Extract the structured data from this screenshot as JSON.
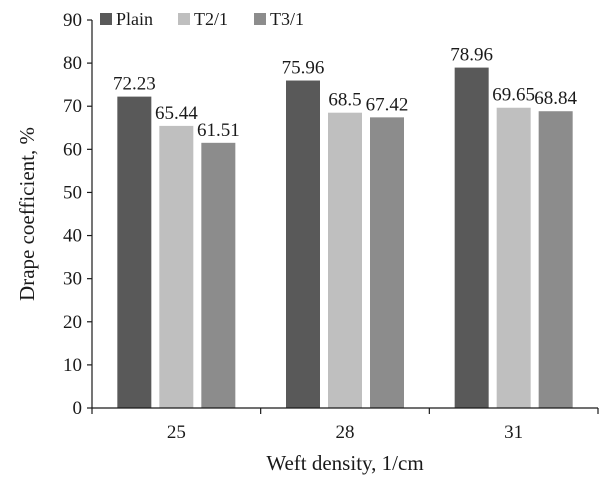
{
  "chart_data": {
    "type": "bar",
    "categories": [
      "25",
      "28",
      "31"
    ],
    "series": [
      {
        "name": "Plain",
        "values": [
          72.23,
          75.96,
          78.96
        ],
        "labels": [
          "72.23",
          "75.96",
          "78.96"
        ]
      },
      {
        "name": "T2/1",
        "values": [
          65.44,
          68.5,
          69.65
        ],
        "labels": [
          "65.44",
          "68.5",
          "69.65"
        ]
      },
      {
        "name": "T3/1",
        "values": [
          61.51,
          67.42,
          68.84
        ],
        "labels": [
          "61.51",
          "67.42",
          "68.84"
        ]
      }
    ],
    "colors": [
      "#595959",
      "#bfbfbf",
      "#8c8c8c"
    ],
    "xlabel": "Weft density, 1/cm",
    "ylabel": "Drape coefficient, %",
    "ylim": [
      0,
      90
    ],
    "yticks": [
      "0",
      "10",
      "20",
      "30",
      "40",
      "50",
      "60",
      "70",
      "80",
      "90"
    ],
    "grid": false,
    "legend_position": "top-left"
  }
}
